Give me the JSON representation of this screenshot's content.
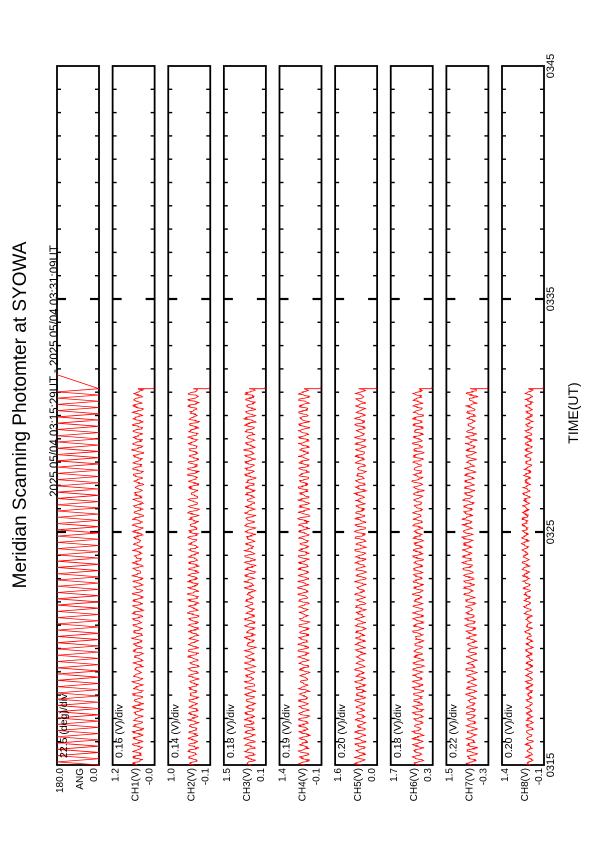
{
  "title": "Meridian Scanning Photomter at SYOWA",
  "time_range": "2025 05/04 03:15:29UT - 2025 05/04 03:31:09UT",
  "xlabel": "TIME(UT)",
  "colors": {
    "trace": "#ff0000",
    "axes": "#000000",
    "background": "#ffffff"
  },
  "chart_data": {
    "type": "line",
    "title": "Meridian Scanning Photomter at SYOWA",
    "subtitle": "2025 05/04 03:15:29UT - 2025 05/04 03:31:09UT",
    "xlabel": "TIME(UT)",
    "x_unit": "minutes (UT)",
    "xlim": [
      "03:15",
      "03:45"
    ],
    "x_ticks": [
      "0315",
      "0325",
      "0335",
      "0345"
    ],
    "data_end": "03:31:09",
    "orientation": "rotated-90-ccw",
    "panels": [
      {
        "label": "ANG",
        "scale": "22.5 (deg)/div",
        "ymin_label": "0.0",
        "ymax_label": "180.0",
        "ylim": [
          0,
          180
        ],
        "mode": "sawtooth",
        "periods": 60,
        "level": 0.5,
        "amp": 1.0,
        "noise": 0.0,
        "rise": 0.0
      },
      {
        "label": "CH1(V)",
        "scale": "0.16 (V)/div",
        "ymin_label": "-0.0",
        "ymax_label": "1.2",
        "ylim": [
          0,
          1.2
        ],
        "mode": "oscillation",
        "periods": 60,
        "level": 0.4,
        "amp": 0.1,
        "noise": 0.05,
        "rise": 0.0
      },
      {
        "label": "CH2(V)",
        "scale": "0.14 (V)/div",
        "ymin_label": "-0.1",
        "ymax_label": "1.0",
        "ylim": [
          -0.1,
          1.0
        ],
        "mode": "oscillation",
        "periods": 60,
        "level": 0.4,
        "amp": 0.1,
        "noise": 0.05,
        "rise": 0.0
      },
      {
        "label": "CH3(V)",
        "scale": "0.18 (V)/div",
        "ymin_label": "0.1",
        "ymax_label": "1.5",
        "ylim": [
          0.1,
          1.5
        ],
        "mode": "oscillation",
        "periods": 60,
        "level": 0.38,
        "amp": 0.1,
        "noise": 0.05,
        "rise": 0.0
      },
      {
        "label": "CH4(V)",
        "scale": "0.19 (V)/div",
        "ymin_label": "-0.1",
        "ymax_label": "1.4",
        "ylim": [
          -0.1,
          1.4
        ],
        "mode": "oscillation",
        "periods": 60,
        "level": 0.42,
        "amp": 0.1,
        "noise": 0.05,
        "rise": 0.0
      },
      {
        "label": "CH5(V)",
        "scale": "0.20 (V)/div",
        "ymin_label": "0.0",
        "ymax_label": "1.6",
        "ylim": [
          0,
          1.6
        ],
        "mode": "oscillation",
        "periods": 60,
        "level": 0.4,
        "amp": 0.1,
        "noise": 0.05,
        "rise": 0.0
      },
      {
        "label": "CH6(V)",
        "scale": "0.18 (V)/div",
        "ymin_label": "0.3",
        "ymax_label": "1.7",
        "ylim": [
          0.3,
          1.7
        ],
        "mode": "oscillation",
        "periods": 60,
        "level": 0.35,
        "amp": 0.1,
        "noise": 0.05,
        "rise": 0.0
      },
      {
        "label": "CH7(V)",
        "scale": "0.22 (V)/div",
        "ymin_label": "-0.3",
        "ymax_label": "1.5",
        "ylim": [
          -0.3,
          1.5
        ],
        "mode": "oscillation",
        "periods": 60,
        "level": 0.4,
        "amp": 0.1,
        "noise": 0.05,
        "rise": 0.1
      },
      {
        "label": "CH8(V)",
        "scale": "0.20 (V)/div",
        "ymin_label": "-0.1",
        "ymax_label": "1.4",
        "ylim": [
          -0.1,
          1.4
        ],
        "mode": "oscillation",
        "periods": 60,
        "level": 0.35,
        "amp": 0.06,
        "noise": 0.04,
        "rise": 0.1
      }
    ]
  }
}
